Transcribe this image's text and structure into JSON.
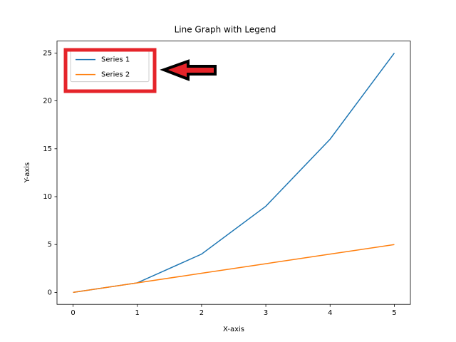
{
  "chart_data": {
    "type": "line",
    "title": "Line Graph with Legend",
    "x_label": "X-axis",
    "y_label": "Y-axis",
    "x": [
      0,
      1,
      2,
      3,
      4,
      5
    ],
    "series": [
      {
        "name": "Series 1",
        "color": "#1f77b4",
        "values": [
          0,
          1,
          4,
          9,
          16,
          25
        ]
      },
      {
        "name": "Series 2",
        "color": "#ff7f0e",
        "values": [
          0,
          1,
          2,
          3,
          4,
          5
        ]
      }
    ],
    "xlim": [
      -0.25,
      5.25
    ],
    "ylim": [
      -1.25,
      26.25
    ],
    "xticks": [
      0,
      1,
      2,
      3,
      4,
      5
    ],
    "yticks": [
      0,
      5,
      10,
      15,
      20,
      25
    ],
    "grid": false,
    "legend": "upper left"
  }
}
